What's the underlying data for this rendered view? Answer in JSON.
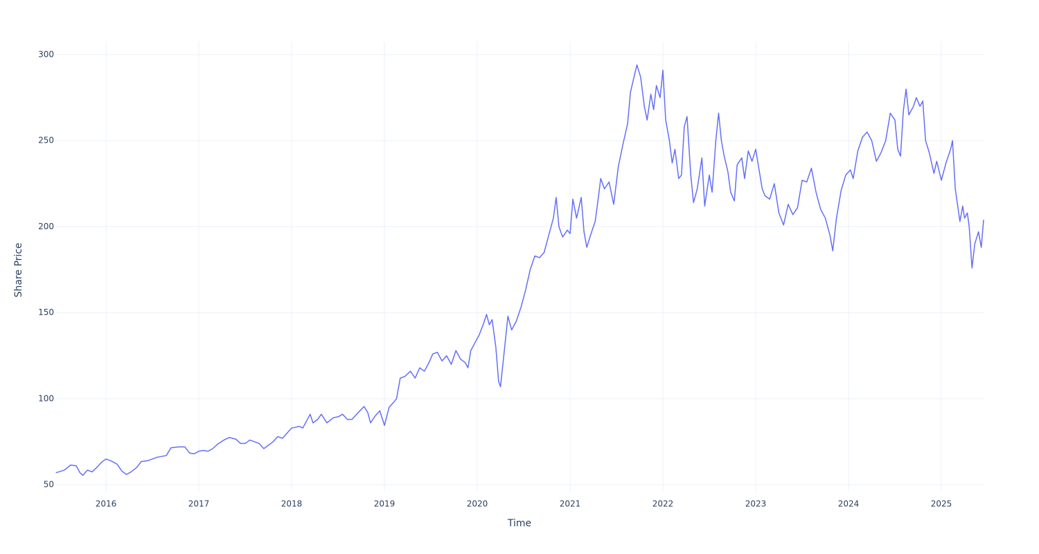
{
  "chart_data": {
    "type": "line",
    "x_label": "Time",
    "y_label": "Share Price",
    "color": "#636efa",
    "grid": true,
    "xlim": [
      2015.455,
      2025.455
    ],
    "xticks": [
      2016,
      2017,
      2018,
      2019,
      2020,
      2021,
      2022,
      2023,
      2024,
      2025
    ],
    "ylim": [
      46,
      307.6
    ],
    "yticks": [
      50,
      100,
      150,
      200,
      250,
      300
    ],
    "x": [
      2015.46,
      2015.55,
      2015.62,
      2015.68,
      2015.72,
      2015.75,
      2015.8,
      2015.85,
      2015.9,
      2015.95,
      2016.0,
      2016.05,
      2016.12,
      2016.17,
      2016.22,
      2016.27,
      2016.33,
      2016.38,
      2016.45,
      2016.5,
      2016.55,
      2016.6,
      2016.65,
      2016.7,
      2016.78,
      2016.85,
      2016.9,
      2016.95,
      2017.0,
      2017.05,
      2017.1,
      2017.15,
      2017.2,
      2017.27,
      2017.33,
      2017.4,
      2017.45,
      2017.5,
      2017.55,
      2017.6,
      2017.65,
      2017.7,
      2017.75,
      2017.8,
      2017.85,
      2017.9,
      2017.95,
      2018.0,
      2018.05,
      2018.08,
      2018.12,
      2018.2,
      2018.23,
      2018.28,
      2018.32,
      2018.38,
      2018.45,
      2018.5,
      2018.55,
      2018.6,
      2018.65,
      2018.7,
      2018.78,
      2018.82,
      2018.85,
      2018.9,
      2018.95,
      2019.0,
      2019.05,
      2019.1,
      2019.13,
      2019.17,
      2019.22,
      2019.28,
      2019.33,
      2019.38,
      2019.43,
      2019.48,
      2019.52,
      2019.57,
      2019.62,
      2019.67,
      2019.72,
      2019.77,
      2019.82,
      2019.87,
      2019.9,
      2019.93,
      2019.97,
      2020.02,
      2020.07,
      2020.1,
      2020.13,
      2020.16,
      2020.2,
      2020.23,
      2020.25,
      2020.28,
      2020.33,
      2020.37,
      2020.42,
      2020.47,
      2020.52,
      2020.57,
      2020.62,
      2020.67,
      2020.72,
      2020.77,
      2020.82,
      2020.85,
      2020.88,
      2020.92,
      2020.97,
      2021.0,
      2021.03,
      2021.07,
      2021.12,
      2021.15,
      2021.18,
      2021.22,
      2021.27,
      2021.3,
      2021.33,
      2021.37,
      2021.42,
      2021.47,
      2021.52,
      2021.57,
      2021.62,
      2021.65,
      2021.68,
      2021.72,
      2021.76,
      2021.8,
      2021.83,
      2021.87,
      2021.9,
      2021.93,
      2021.97,
      2022.0,
      2022.03,
      2022.07,
      2022.1,
      2022.13,
      2022.17,
      2022.2,
      2022.23,
      2022.26,
      2022.3,
      2022.33,
      2022.37,
      2022.42,
      2022.45,
      2022.5,
      2022.53,
      2022.57,
      2022.6,
      2022.63,
      2022.66,
      2022.7,
      2022.73,
      2022.77,
      2022.8,
      2022.85,
      2022.88,
      2022.92,
      2022.96,
      2023.0,
      2023.03,
      2023.07,
      2023.1,
      2023.15,
      2023.2,
      2023.25,
      2023.3,
      2023.35,
      2023.4,
      2023.45,
      2023.5,
      2023.55,
      2023.6,
      2023.65,
      2023.7,
      2023.75,
      2023.8,
      2023.83,
      2023.87,
      2023.92,
      2023.97,
      2024.02,
      2024.05,
      2024.1,
      2024.15,
      2024.2,
      2024.25,
      2024.3,
      2024.35,
      2024.4,
      2024.45,
      2024.5,
      2024.53,
      2024.56,
      2024.59,
      2024.62,
      2024.65,
      2024.7,
      2024.73,
      2024.77,
      2024.8,
      2024.83,
      2024.87,
      2024.92,
      2024.95,
      2025.0,
      2025.05,
      2025.1,
      2025.12,
      2025.15,
      2025.2,
      2025.23,
      2025.25,
      2025.28,
      2025.3,
      2025.33,
      2025.36,
      2025.4,
      2025.43,
      2025.455
    ],
    "values": [
      57,
      58.5,
      61.5,
      61,
      57,
      55.5,
      58.5,
      57.5,
      60,
      63,
      65,
      64,
      62,
      58,
      56,
      57.5,
      60,
      63.5,
      64,
      65,
      66,
      66.5,
      67,
      71.5,
      72,
      72,
      68.5,
      68,
      69.5,
      70,
      69.5,
      71,
      73.5,
      76,
      77.5,
      76.5,
      74,
      74,
      76,
      75,
      74,
      71,
      73,
      75,
      78,
      77,
      80,
      83,
      83.5,
      84,
      83,
      91,
      86,
      88,
      91,
      86,
      89,
      89.5,
      91,
      88,
      88,
      91,
      95.5,
      92,
      86,
      90,
      93,
      84.5,
      95,
      98,
      100,
      112,
      113,
      116,
      112,
      118,
      116,
      121,
      126,
      127,
      122,
      125,
      120,
      128,
      123,
      121,
      118,
      128,
      132,
      137,
      144,
      149,
      143,
      146,
      130,
      110,
      107,
      122,
      148,
      140,
      145,
      153,
      163,
      175,
      183,
      182,
      185,
      195,
      205,
      217,
      200,
      194,
      198,
      196,
      216,
      205,
      217,
      197,
      188,
      195,
      203,
      215,
      228,
      222,
      226,
      213,
      235,
      248,
      260,
      278,
      285,
      294,
      287,
      270,
      262,
      277,
      268,
      282,
      275,
      291,
      262,
      250,
      237,
      245,
      228,
      230,
      258,
      264,
      230,
      214,
      222,
      240,
      212,
      230,
      220,
      250,
      266,
      250,
      241,
      232,
      220,
      215,
      236,
      240,
      228,
      244,
      238,
      245,
      235,
      222,
      218,
      216,
      225,
      208,
      201,
      213,
      207,
      211,
      227,
      226,
      234,
      220,
      210,
      205,
      195,
      186,
      205,
      221,
      230,
      233,
      228,
      244,
      252,
      255,
      250,
      238,
      243,
      250,
      266,
      262,
      245,
      241,
      267,
      280,
      265,
      270,
      275,
      270,
      273,
      250,
      243,
      231,
      238,
      227,
      237,
      245,
      250,
      222,
      203,
      212,
      205,
      208,
      200,
      176,
      190,
      197,
      188,
      204
    ]
  }
}
